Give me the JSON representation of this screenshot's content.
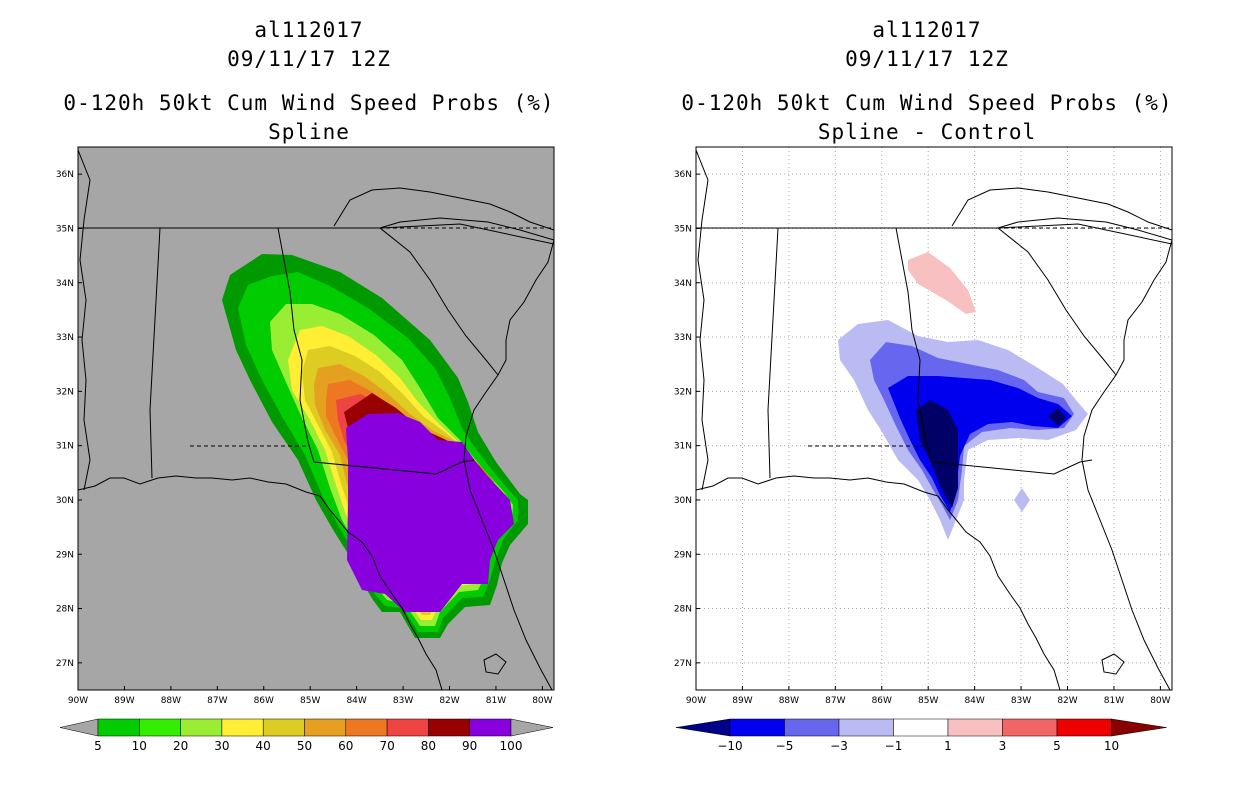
{
  "panels": [
    {
      "storm_id": "al112017",
      "datetime": "09/11/17 12Z",
      "product": "0-120h 50kt Cum Wind Speed Probs (%)",
      "subtitle": "Spline",
      "background": "#a6a6a6",
      "lat_labels": [
        "27N",
        "28N",
        "29N",
        "30N",
        "31N",
        "32N",
        "33N",
        "34N",
        "35N",
        "36N"
      ],
      "lon_labels": [
        "90W",
        "89W",
        "88W",
        "87W",
        "86W",
        "85W",
        "84W",
        "83W",
        "82W",
        "81W",
        "80W"
      ],
      "colorbar": {
        "labels": [
          "5",
          "10",
          "20",
          "30",
          "40",
          "50",
          "60",
          "70",
          "80",
          "90",
          "100"
        ],
        "colors": [
          "#009900",
          "#00cc00",
          "#33ee00",
          "#99ee33",
          "#ffee33",
          "#ddcc22",
          "#e6a020",
          "#ee7722",
          "#ee4444",
          "#990000",
          "#8800dd"
        ]
      }
    },
    {
      "storm_id": "al112017",
      "datetime": "09/11/17 12Z",
      "product": "0-120h 50kt Cum Wind Speed Probs (%)",
      "subtitle": "Spline - Control",
      "background": "#ffffff",
      "lat_labels": [
        "27N",
        "28N",
        "29N",
        "30N",
        "31N",
        "32N",
        "33N",
        "34N",
        "35N",
        "36N"
      ],
      "lon_labels": [
        "90W",
        "89W",
        "88W",
        "87W",
        "86W",
        "85W",
        "84W",
        "83W",
        "82W",
        "81W",
        "80W"
      ],
      "colorbar": {
        "labels": [
          "-10",
          "-5",
          "-3",
          "-1",
          "1",
          "3",
          "5",
          "10"
        ],
        "colors": [
          "#000088",
          "#0000ee",
          "#6666ee",
          "#bbbbf4",
          "#ffffff",
          "#f8c0c0",
          "#f06666",
          "#ee0000",
          "#880000"
        ]
      }
    }
  ]
}
